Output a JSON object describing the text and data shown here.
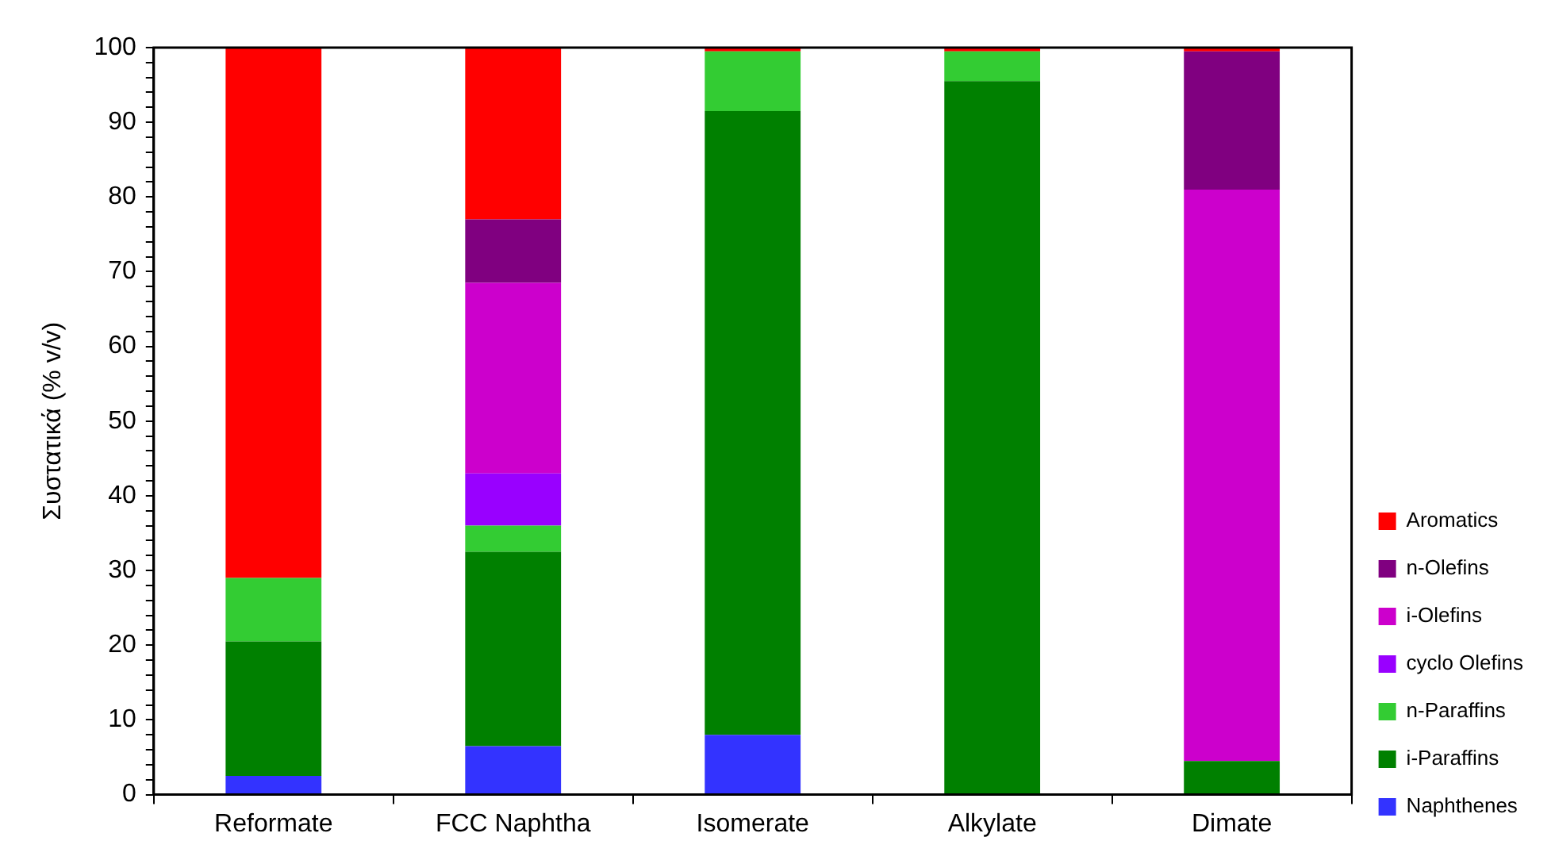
{
  "chart_data": {
    "type": "bar",
    "stacked": true,
    "ylabel": "Συστατικά (% v/v)",
    "categories": [
      "Reformate",
      "FCC Naphtha",
      "Isomerate",
      "Alkylate",
      "Dimate"
    ],
    "series": [
      {
        "name": "Naphthenes",
        "color": "#3333ff",
        "values": [
          2.5,
          6.5,
          8,
          0,
          0
        ]
      },
      {
        "name": "i-Paraffins",
        "color": "#008000",
        "values": [
          18,
          26,
          83.5,
          95.5,
          4.5
        ]
      },
      {
        "name": "n-Paraffins",
        "color": "#33cc33",
        "values": [
          8.5,
          3.5,
          8,
          4,
          0
        ]
      },
      {
        "name": "cyclo Olefins",
        "color": "#9900ff",
        "values": [
          0,
          7,
          0,
          0,
          0
        ]
      },
      {
        "name": "i-Olefins",
        "color": "#cc00cc",
        "values": [
          0,
          25.5,
          0,
          0,
          76.5
        ]
      },
      {
        "name": "n-Olefins",
        "color": "#800080",
        "values": [
          0,
          8.5,
          0,
          0,
          18.5
        ]
      },
      {
        "name": "Aromatics",
        "color": "#ff0000",
        "values": [
          71,
          23,
          0.5,
          0.5,
          0.5
        ]
      }
    ],
    "ylim": [
      0,
      100
    ],
    "yticks": [
      0,
      {
        "value": 2,
        "label": null
      },
      {
        "value": 4,
        "label": null
      },
      {
        "value": 6,
        "label": null
      },
      {
        "value": 8,
        "label": null
      },
      10,
      {
        "value": 12,
        "label": null
      },
      {
        "value": 14,
        "label": null
      },
      {
        "value": 16,
        "label": null
      },
      {
        "value": 18,
        "label": null
      },
      20,
      {
        "value": 22,
        "label": null
      },
      {
        "value": 24,
        "label": null
      },
      {
        "value": 26,
        "label": null
      },
      {
        "value": 28,
        "label": null
      },
      30,
      {
        "value": 32,
        "label": null
      },
      {
        "value": 34,
        "label": null
      },
      {
        "value": 36,
        "label": null
      },
      {
        "value": 38,
        "label": null
      },
      40,
      {
        "value": 42,
        "label": null
      },
      {
        "value": 44,
        "label": null
      },
      {
        "value": 46,
        "label": null
      },
      {
        "value": 48,
        "label": null
      },
      50,
      {
        "value": 52,
        "label": null
      },
      {
        "value": 54,
        "label": null
      },
      {
        "value": 56,
        "label": null
      },
      {
        "value": 58,
        "label": null
      },
      60,
      {
        "value": 62,
        "label": null
      },
      {
        "value": 64,
        "label": null
      },
      {
        "value": 66,
        "label": null
      },
      {
        "value": 68,
        "label": null
      },
      70,
      {
        "value": 72,
        "label": null
      },
      {
        "value": 74,
        "label": null
      },
      {
        "value": 76,
        "label": null
      },
      {
        "value": 78,
        "label": null
      },
      80,
      {
        "value": 82,
        "label": null
      },
      {
        "value": 84,
        "label": null
      },
      {
        "value": 86,
        "label": null
      },
      {
        "value": 88,
        "label": null
      },
      90,
      {
        "value": 92,
        "label": null
      },
      {
        "value": 94,
        "label": null
      },
      {
        "value": 96,
        "label": null
      },
      {
        "value": 98,
        "label": null
      },
      100
    ],
    "grid": false,
    "legend": "right"
  }
}
